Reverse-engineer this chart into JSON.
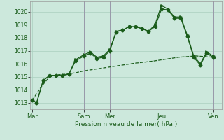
{
  "bg_color": "#cce8dc",
  "grid_color": "#aacfbf",
  "line_color": "#1a5c1a",
  "vline_color": "#9999aa",
  "xlabel": "Pression niveau de la mer( hPa )",
  "ylim": [
    1012.5,
    1020.8
  ],
  "yticks": [
    1013,
    1014,
    1015,
    1016,
    1017,
    1018,
    1019,
    1020
  ],
  "xtick_labels": [
    "Mar",
    "Sam",
    "Mer",
    "Jeu",
    "Ven"
  ],
  "xtick_positions": [
    0,
    24,
    36,
    60,
    84
  ],
  "vline_positions": [
    24,
    36,
    60,
    84
  ],
  "xlim": [
    -1,
    88
  ],
  "series1_x": [
    0,
    2,
    5,
    8,
    11,
    14,
    17,
    20,
    24,
    27,
    30,
    33,
    36,
    39,
    42,
    45,
    48,
    51,
    54,
    57,
    60,
    63,
    66,
    69,
    72,
    75,
    78,
    81,
    84
  ],
  "series1_y": [
    1013.2,
    1013.0,
    1014.7,
    1015.1,
    1015.1,
    1015.1,
    1015.2,
    1016.3,
    1016.7,
    1016.9,
    1016.5,
    1016.6,
    1017.1,
    1018.5,
    1018.6,
    1018.85,
    1018.85,
    1018.7,
    1018.5,
    1019.0,
    1020.5,
    1020.2,
    1019.6,
    1019.6,
    1018.2,
    1016.6,
    1016.0,
    1016.9,
    1016.6
  ],
  "series2_x": [
    0,
    2,
    5,
    8,
    11,
    14,
    17,
    20,
    24,
    27,
    30,
    33,
    36,
    39,
    42,
    45,
    48,
    51,
    54,
    57,
    60,
    63,
    66,
    69,
    72,
    75,
    78,
    81,
    84
  ],
  "series2_y": [
    1013.2,
    1013.0,
    1014.7,
    1015.1,
    1015.1,
    1015.1,
    1015.2,
    1016.2,
    1016.6,
    1016.8,
    1016.4,
    1016.5,
    1017.0,
    1018.45,
    1018.6,
    1018.85,
    1018.85,
    1018.7,
    1018.5,
    1018.85,
    1020.2,
    1020.15,
    1019.5,
    1019.5,
    1018.1,
    1016.5,
    1015.9,
    1016.8,
    1016.5
  ],
  "series3_x": [
    0,
    4,
    8,
    12,
    16,
    20,
    24,
    28,
    32,
    36,
    40,
    44,
    48,
    52,
    56,
    60,
    64,
    68,
    72,
    76,
    80,
    84
  ],
  "series3_y": [
    1013.2,
    1014.2,
    1015.0,
    1015.15,
    1015.2,
    1015.3,
    1015.45,
    1015.55,
    1015.65,
    1015.75,
    1015.85,
    1015.95,
    1016.05,
    1016.12,
    1016.2,
    1016.3,
    1016.4,
    1016.5,
    1016.55,
    1016.6,
    1016.55,
    1016.5
  ],
  "marker_size": 2.5,
  "linewidth": 0.9
}
